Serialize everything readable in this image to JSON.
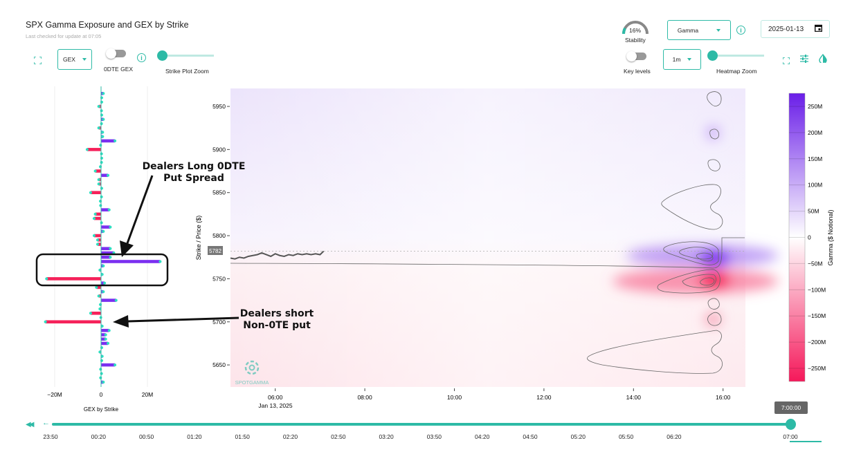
{
  "header": {
    "title": "SPX Gamma Exposure and GEX by Strike",
    "subtitle": "Last checked for update at 07:05"
  },
  "left_controls": {
    "gex_select": "GEX",
    "odte_label": "0DTE GEX",
    "zoom_label": "Strike Plot Zoom",
    "info_icon": "i"
  },
  "right_controls": {
    "stability_value": "16%",
    "stability_label": "Stability",
    "stability_fraction": 0.16,
    "metric_select": "Gamma",
    "date": "2025-01-13",
    "key_levels_label": "Key levels",
    "interval_select": "1m",
    "zoom_label": "Heatmap Zoom",
    "info_icon": "i"
  },
  "annotations": {
    "long_line1": "Dealers Long 0DTE",
    "long_line2": "Put Spread",
    "short_line1": "Dealers short",
    "short_line2": "Non-0TE put"
  },
  "watermark": "SPOTGAMMA",
  "current_price_label": "5782",
  "timeline": {
    "labels": [
      "23:50",
      "00:20",
      "00:50",
      "01:20",
      "01:50",
      "02:20",
      "02:50",
      "03:20",
      "03:50",
      "04:20",
      "04:50",
      "05:20",
      "05:50",
      "06:20",
      "07:00"
    ],
    "tooltip": "7:00:00",
    "position_fraction": 1.0
  },
  "colors": {
    "accent": "#2dbaa6",
    "positive": "#7b2ff0",
    "negative": "#f5215a"
  },
  "chart_data": [
    {
      "type": "bar",
      "title": "GEX by Strike",
      "xlabel": "GEX by Strike",
      "xlim": [
        -30,
        30
      ],
      "xticks": [
        {
          "v": -20,
          "label": "−20M"
        },
        {
          "v": 0,
          "label": "0"
        },
        {
          "v": 20,
          "label": "20M"
        }
      ],
      "unit": "M",
      "strikes": [
        5965,
        5960,
        5955,
        5950,
        5945,
        5940,
        5935,
        5930,
        5925,
        5920,
        5915,
        5910,
        5905,
        5900,
        5895,
        5890,
        5885,
        5880,
        5875,
        5870,
        5865,
        5860,
        5855,
        5850,
        5845,
        5840,
        5835,
        5830,
        5825,
        5820,
        5815,
        5810,
        5805,
        5800,
        5795,
        5790,
        5785,
        5780,
        5775,
        5770,
        5765,
        5760,
        5755,
        5750,
        5745,
        5740,
        5735,
        5730,
        5725,
        5720,
        5715,
        5710,
        5705,
        5700,
        5695,
        5690,
        5685,
        5680,
        5675,
        5670,
        5665,
        5660,
        5655,
        5650,
        5645,
        5640,
        5635,
        5630
      ],
      "values": [
        1,
        0.3,
        0.3,
        -1,
        0.2,
        0.3,
        1,
        0.2,
        -1,
        0.7,
        0.7,
        6,
        -0.2,
        -6,
        0.2,
        0.3,
        0.2,
        -0.3,
        -2.5,
        3,
        -1,
        -1,
        0.3,
        -4.5,
        0.2,
        -0.3,
        -0.2,
        3.5,
        -2.5,
        -3,
        0.2,
        4,
        1,
        -3,
        -1.5,
        -1.5,
        4,
        5.5,
        4,
        25.5,
        1,
        -0.5,
        0.5,
        -23.5,
        1.5,
        -2,
        1,
        -1,
        6.5,
        -0.3,
        -0.5,
        -4.5,
        -0.1,
        -24,
        0.5,
        3.5,
        2,
        2,
        3,
        0.3,
        -0.5,
        0.5,
        0.3,
        6,
        -0.2,
        0.2,
        -0.2,
        1
      ]
    },
    {
      "type": "heatmap",
      "title": "SPX Gamma Exposure",
      "xlabel": "Jan 13, 2025",
      "ylabel": "Strike / Price ($)",
      "colorbar_label": "Gamma ($ Notional)",
      "xlim": [
        "05:00",
        "16:30"
      ],
      "ylim": [
        5630,
        5971
      ],
      "xticks": [
        "06:00",
        "08:00",
        "10:00",
        "12:00",
        "14:00",
        "16:00"
      ],
      "yticks": [
        5650,
        5700,
        5750,
        5800,
        5850,
        5900,
        5950
      ],
      "colorbar_ticks": [
        {
          "v": 250,
          "label": "250M"
        },
        {
          "v": 200,
          "label": "200M"
        },
        {
          "v": 150,
          "label": "150M"
        },
        {
          "v": 100,
          "label": "100M"
        },
        {
          "v": 50,
          "label": "50M"
        },
        {
          "v": 0,
          "label": "0"
        },
        {
          "v": -50,
          "label": "−50M"
        },
        {
          "v": -100,
          "label": "−100M"
        },
        {
          "v": -150,
          "label": "−150M"
        },
        {
          "v": -200,
          "label": "−200M"
        },
        {
          "v": -250,
          "label": "−250M"
        }
      ],
      "colorbar_range": [
        -275,
        275
      ],
      "price_series": {
        "t": [
          5.0,
          5.1,
          5.2,
          5.3,
          5.4,
          5.5,
          5.6,
          5.7,
          5.8,
          5.9,
          6.0,
          6.1,
          6.2,
          6.3,
          6.4,
          6.5,
          6.6,
          6.7,
          6.8,
          6.9,
          7.0,
          7.08
        ],
        "price": [
          5774,
          5773,
          5775,
          5774,
          5776,
          5777,
          5778,
          5780,
          5778,
          5776,
          5779,
          5777,
          5776,
          5778,
          5777,
          5779,
          5778,
          5779,
          5778,
          5779,
          5778,
          5782
        ]
      },
      "current_price": 5782
    }
  ]
}
